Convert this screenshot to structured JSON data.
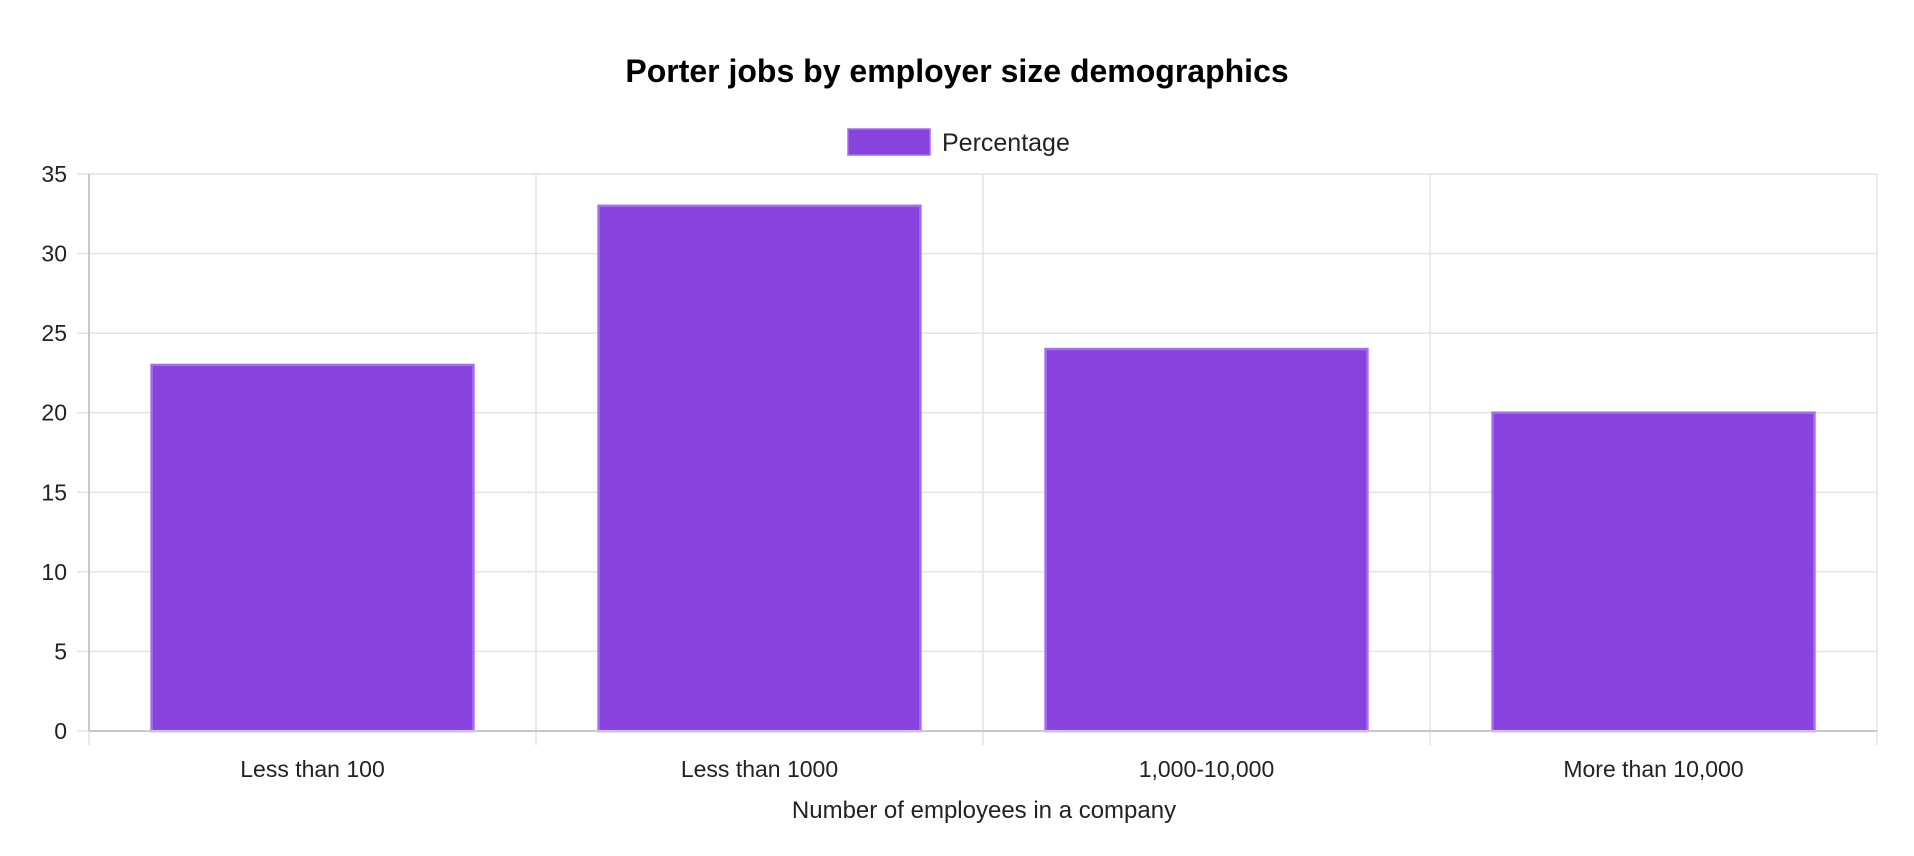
{
  "chart_data": {
    "type": "bar",
    "title": "Porter jobs by employer size demographics",
    "xlabel": "Number of employees in a company",
    "ylabel": "",
    "categories": [
      "Less than 100",
      "Less than 1000",
      "1,000-10,000",
      "More than 10,000"
    ],
    "series": [
      {
        "name": "Percentage",
        "values": [
          23,
          33,
          24,
          20
        ],
        "color": "#8842de",
        "border_color": "#a66cf0"
      }
    ],
    "ylim": [
      0,
      35
    ],
    "yticks": [
      0,
      5,
      10,
      15,
      20,
      25,
      30,
      35
    ],
    "grid": true,
    "legend_position": "top-center"
  }
}
